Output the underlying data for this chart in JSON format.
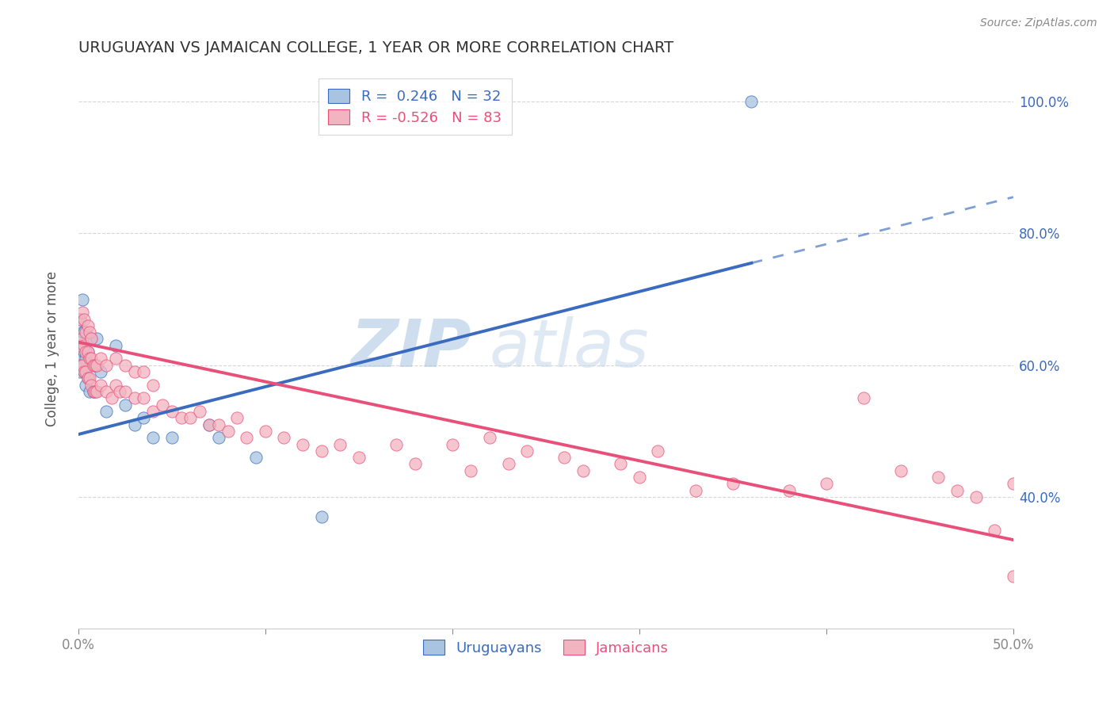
{
  "title": "URUGUAYAN VS JAMAICAN COLLEGE, 1 YEAR OR MORE CORRELATION CHART",
  "source": "Source: ZipAtlas.com",
  "ylabel": "College, 1 year or more",
  "xlim": [
    0.0,
    0.5
  ],
  "ylim": [
    0.2,
    1.05
  ],
  "ytick_vals": [
    0.4,
    0.6,
    0.8,
    1.0
  ],
  "ytick_labels": [
    "40.0%",
    "60.0%",
    "80.0%",
    "100.0%"
  ],
  "xtick_vals": [
    0.0,
    0.1,
    0.2,
    0.3,
    0.4,
    0.5
  ],
  "xtick_labels": [
    "0.0%",
    "",
    "",
    "",
    "",
    "50.0%"
  ],
  "uruguayan_color": "#a8c4e0",
  "jamaican_color": "#f2b4c0",
  "uruguayan_line_color": "#3a6bbf",
  "jamaican_line_color": "#e8507a",
  "R_uruguayan": 0.246,
  "N_uruguayan": 32,
  "R_jamaican": -0.526,
  "N_jamaican": 83,
  "uru_line_x0": 0.0,
  "uru_line_y0": 0.495,
  "uru_line_x1": 0.36,
  "uru_line_y1": 0.755,
  "uru_line_dash_x1": 0.5,
  "uru_line_dash_y1": 0.855,
  "jam_line_x0": 0.0,
  "jam_line_y0": 0.635,
  "jam_line_x1": 0.5,
  "jam_line_y1": 0.335,
  "uruguayan_x": [
    0.001,
    0.001,
    0.001,
    0.002,
    0.002,
    0.002,
    0.003,
    0.003,
    0.003,
    0.004,
    0.004,
    0.005,
    0.005,
    0.006,
    0.006,
    0.007,
    0.008,
    0.009,
    0.01,
    0.012,
    0.015,
    0.02,
    0.025,
    0.03,
    0.035,
    0.04,
    0.05,
    0.07,
    0.075,
    0.095,
    0.13,
    0.36
  ],
  "uruguayan_y": [
    0.59,
    0.63,
    0.67,
    0.61,
    0.65,
    0.7,
    0.59,
    0.62,
    0.65,
    0.57,
    0.61,
    0.58,
    0.62,
    0.56,
    0.6,
    0.64,
    0.56,
    0.6,
    0.64,
    0.59,
    0.53,
    0.63,
    0.54,
    0.51,
    0.52,
    0.49,
    0.49,
    0.51,
    0.49,
    0.46,
    0.37,
    1.0
  ],
  "jamaican_x": [
    0.001,
    0.001,
    0.001,
    0.002,
    0.002,
    0.002,
    0.003,
    0.003,
    0.003,
    0.004,
    0.004,
    0.004,
    0.005,
    0.005,
    0.005,
    0.006,
    0.006,
    0.006,
    0.007,
    0.007,
    0.007,
    0.008,
    0.008,
    0.009,
    0.009,
    0.01,
    0.01,
    0.012,
    0.012,
    0.015,
    0.015,
    0.018,
    0.02,
    0.02,
    0.022,
    0.025,
    0.025,
    0.03,
    0.03,
    0.035,
    0.035,
    0.04,
    0.04,
    0.045,
    0.05,
    0.055,
    0.06,
    0.065,
    0.07,
    0.075,
    0.08,
    0.085,
    0.09,
    0.1,
    0.11,
    0.12,
    0.13,
    0.14,
    0.15,
    0.17,
    0.18,
    0.2,
    0.21,
    0.22,
    0.23,
    0.24,
    0.26,
    0.27,
    0.29,
    0.3,
    0.31,
    0.33,
    0.35,
    0.38,
    0.4,
    0.42,
    0.44,
    0.46,
    0.47,
    0.48,
    0.49,
    0.5,
    0.5
  ],
  "jamaican_y": [
    0.6,
    0.63,
    0.67,
    0.6,
    0.64,
    0.68,
    0.59,
    0.63,
    0.67,
    0.59,
    0.62,
    0.65,
    0.58,
    0.62,
    0.66,
    0.58,
    0.61,
    0.65,
    0.57,
    0.61,
    0.64,
    0.56,
    0.6,
    0.56,
    0.6,
    0.56,
    0.6,
    0.57,
    0.61,
    0.56,
    0.6,
    0.55,
    0.57,
    0.61,
    0.56,
    0.56,
    0.6,
    0.55,
    0.59,
    0.55,
    0.59,
    0.53,
    0.57,
    0.54,
    0.53,
    0.52,
    0.52,
    0.53,
    0.51,
    0.51,
    0.5,
    0.52,
    0.49,
    0.5,
    0.49,
    0.48,
    0.47,
    0.48,
    0.46,
    0.48,
    0.45,
    0.48,
    0.44,
    0.49,
    0.45,
    0.47,
    0.46,
    0.44,
    0.45,
    0.43,
    0.47,
    0.41,
    0.42,
    0.41,
    0.42,
    0.55,
    0.44,
    0.43,
    0.41,
    0.4,
    0.35,
    0.42,
    0.28
  ],
  "watermark_text": "ZIPatlas",
  "watermark_color": "#c8d8ea",
  "grid_color": "#cccccc",
  "title_color": "#333333",
  "axis_label_color": "#555555",
  "tick_color": "#888888"
}
